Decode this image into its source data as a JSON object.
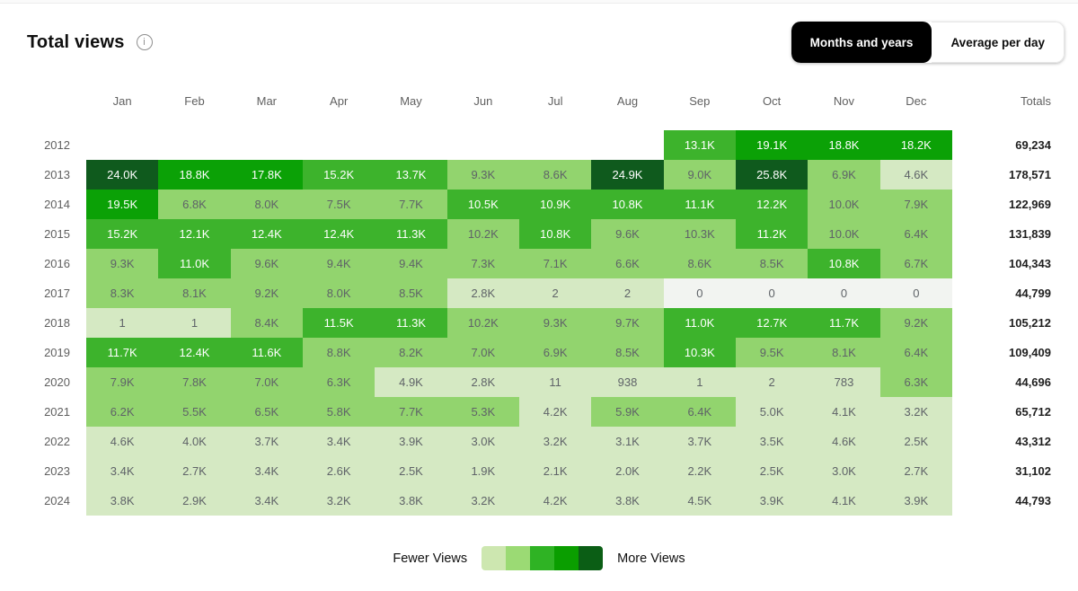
{
  "header": {
    "title": "Total views",
    "toggle": {
      "options": [
        {
          "label": "Months and years",
          "selected": true
        },
        {
          "label": "Average per day",
          "selected": false
        }
      ]
    }
  },
  "chart_data": {
    "type": "heatmap",
    "title": "Total views",
    "columns": [
      "Jan",
      "Feb",
      "Mar",
      "Apr",
      "May",
      "Jun",
      "Jul",
      "Aug",
      "Sep",
      "Oct",
      "Nov",
      "Dec"
    ],
    "totals_label": "Totals",
    "rows": [
      {
        "year": "2012",
        "cells": [
          [
            "",
            -1
          ],
          [
            "",
            -1
          ],
          [
            "",
            -1
          ],
          [
            "",
            -1
          ],
          [
            "",
            -1
          ],
          [
            "",
            -1
          ],
          [
            "",
            -1
          ],
          [
            "",
            -1
          ],
          [
            "13.1K",
            3
          ],
          [
            "19.1K",
            4
          ],
          [
            "18.8K",
            4
          ],
          [
            "18.2K",
            4
          ]
        ],
        "total": "69,234"
      },
      {
        "year": "2013",
        "cells": [
          [
            "24.0K",
            5
          ],
          [
            "18.8K",
            4
          ],
          [
            "17.8K",
            4
          ],
          [
            "15.2K",
            3
          ],
          [
            "13.7K",
            3
          ],
          [
            "9.3K",
            2
          ],
          [
            "8.6K",
            2
          ],
          [
            "24.9K",
            5
          ],
          [
            "9.0K",
            2
          ],
          [
            "25.8K",
            5
          ],
          [
            "6.9K",
            2
          ],
          [
            "4.6K",
            1
          ]
        ],
        "total": "178,571"
      },
      {
        "year": "2014",
        "cells": [
          [
            "19.5K",
            4
          ],
          [
            "6.8K",
            2
          ],
          [
            "8.0K",
            2
          ],
          [
            "7.5K",
            2
          ],
          [
            "7.7K",
            2
          ],
          [
            "10.5K",
            3
          ],
          [
            "10.9K",
            3
          ],
          [
            "10.8K",
            3
          ],
          [
            "11.1K",
            3
          ],
          [
            "12.2K",
            3
          ],
          [
            "10.0K",
            2
          ],
          [
            "7.9K",
            2
          ]
        ],
        "total": "122,969"
      },
      {
        "year": "2015",
        "cells": [
          [
            "15.2K",
            3
          ],
          [
            "12.1K",
            3
          ],
          [
            "12.4K",
            3
          ],
          [
            "12.4K",
            3
          ],
          [
            "11.3K",
            3
          ],
          [
            "10.2K",
            2
          ],
          [
            "10.8K",
            3
          ],
          [
            "9.6K",
            2
          ],
          [
            "10.3K",
            2
          ],
          [
            "11.2K",
            3
          ],
          [
            "10.0K",
            2
          ],
          [
            "6.4K",
            2
          ]
        ],
        "total": "131,839"
      },
      {
        "year": "2016",
        "cells": [
          [
            "9.3K",
            2
          ],
          [
            "11.0K",
            3
          ],
          [
            "9.6K",
            2
          ],
          [
            "9.4K",
            2
          ],
          [
            "9.4K",
            2
          ],
          [
            "7.3K",
            2
          ],
          [
            "7.1K",
            2
          ],
          [
            "6.6K",
            2
          ],
          [
            "8.6K",
            2
          ],
          [
            "8.5K",
            2
          ],
          [
            "10.8K",
            3
          ],
          [
            "6.7K",
            2
          ]
        ],
        "total": "104,343"
      },
      {
        "year": "2017",
        "cells": [
          [
            "8.3K",
            2
          ],
          [
            "8.1K",
            2
          ],
          [
            "9.2K",
            2
          ],
          [
            "8.0K",
            2
          ],
          [
            "8.5K",
            2
          ],
          [
            "2.8K",
            1
          ],
          [
            "2",
            1
          ],
          [
            "2",
            1
          ],
          [
            "0",
            0
          ],
          [
            "0",
            0
          ],
          [
            "0",
            0
          ],
          [
            "0",
            0
          ]
        ],
        "total": "44,799"
      },
      {
        "year": "2018",
        "cells": [
          [
            "1",
            1
          ],
          [
            "1",
            1
          ],
          [
            "8.4K",
            2
          ],
          [
            "11.5K",
            3
          ],
          [
            "11.3K",
            3
          ],
          [
            "10.2K",
            2
          ],
          [
            "9.3K",
            2
          ],
          [
            "9.7K",
            2
          ],
          [
            "11.0K",
            3
          ],
          [
            "12.7K",
            3
          ],
          [
            "11.7K",
            3
          ],
          [
            "9.2K",
            2
          ]
        ],
        "total": "105,212"
      },
      {
        "year": "2019",
        "cells": [
          [
            "11.7K",
            3
          ],
          [
            "12.4K",
            3
          ],
          [
            "11.6K",
            3
          ],
          [
            "8.8K",
            2
          ],
          [
            "8.2K",
            2
          ],
          [
            "7.0K",
            2
          ],
          [
            "6.9K",
            2
          ],
          [
            "8.5K",
            2
          ],
          [
            "10.3K",
            3
          ],
          [
            "9.5K",
            2
          ],
          [
            "8.1K",
            2
          ],
          [
            "6.4K",
            2
          ]
        ],
        "total": "109,409"
      },
      {
        "year": "2020",
        "cells": [
          [
            "7.9K",
            2
          ],
          [
            "7.8K",
            2
          ],
          [
            "7.0K",
            2
          ],
          [
            "6.3K",
            2
          ],
          [
            "4.9K",
            1
          ],
          [
            "2.8K",
            1
          ],
          [
            "11",
            1
          ],
          [
            "938",
            1
          ],
          [
            "1",
            1
          ],
          [
            "2",
            1
          ],
          [
            "783",
            1
          ],
          [
            "6.3K",
            2
          ]
        ],
        "total": "44,696"
      },
      {
        "year": "2021",
        "cells": [
          [
            "6.2K",
            2
          ],
          [
            "5.5K",
            2
          ],
          [
            "6.5K",
            2
          ],
          [
            "5.8K",
            2
          ],
          [
            "7.7K",
            2
          ],
          [
            "5.3K",
            2
          ],
          [
            "4.2K",
            1
          ],
          [
            "5.9K",
            2
          ],
          [
            "6.4K",
            2
          ],
          [
            "5.0K",
            1
          ],
          [
            "4.1K",
            1
          ],
          [
            "3.2K",
            1
          ]
        ],
        "total": "65,712"
      },
      {
        "year": "2022",
        "cells": [
          [
            "4.6K",
            1
          ],
          [
            "4.0K",
            1
          ],
          [
            "3.7K",
            1
          ],
          [
            "3.4K",
            1
          ],
          [
            "3.9K",
            1
          ],
          [
            "3.0K",
            1
          ],
          [
            "3.2K",
            1
          ],
          [
            "3.1K",
            1
          ],
          [
            "3.7K",
            1
          ],
          [
            "3.5K",
            1
          ],
          [
            "4.6K",
            1
          ],
          [
            "2.5K",
            1
          ]
        ],
        "total": "43,312"
      },
      {
        "year": "2023",
        "cells": [
          [
            "3.4K",
            1
          ],
          [
            "2.7K",
            1
          ],
          [
            "3.4K",
            1
          ],
          [
            "2.6K",
            1
          ],
          [
            "2.5K",
            1
          ],
          [
            "1.9K",
            1
          ],
          [
            "2.1K",
            1
          ],
          [
            "2.0K",
            1
          ],
          [
            "2.2K",
            1
          ],
          [
            "2.5K",
            1
          ],
          [
            "3.0K",
            1
          ],
          [
            "2.7K",
            1
          ]
        ],
        "total": "31,102"
      },
      {
        "year": "2024",
        "cells": [
          [
            "3.8K",
            1
          ],
          [
            "2.9K",
            1
          ],
          [
            "3.4K",
            1
          ],
          [
            "3.2K",
            1
          ],
          [
            "3.8K",
            1
          ],
          [
            "3.2K",
            1
          ],
          [
            "4.2K",
            1
          ],
          [
            "3.8K",
            1
          ],
          [
            "4.5K",
            1
          ],
          [
            "3.9K",
            1
          ],
          [
            "4.1K",
            1
          ],
          [
            "3.9K",
            1
          ]
        ],
        "total": "44,793"
      }
    ],
    "legend": {
      "fewer_label": "Fewer Views",
      "more_label": "More Views",
      "swatches": [
        "#cde7b0",
        "#9bda74",
        "#2fb324",
        "#0a9e00",
        "#0b5e15"
      ]
    },
    "palette": {
      "empty": "transparent",
      "0": "#f2f4f1",
      "1": "#d5e9c3",
      "2": "#92d46e",
      "3": "#3db32c",
      "4": "#0ba106",
      "5": "#0f5a1d"
    },
    "text_colors": {
      "light_cell_text": "#5f6368",
      "dark_cell_text": "#ffffff"
    }
  }
}
